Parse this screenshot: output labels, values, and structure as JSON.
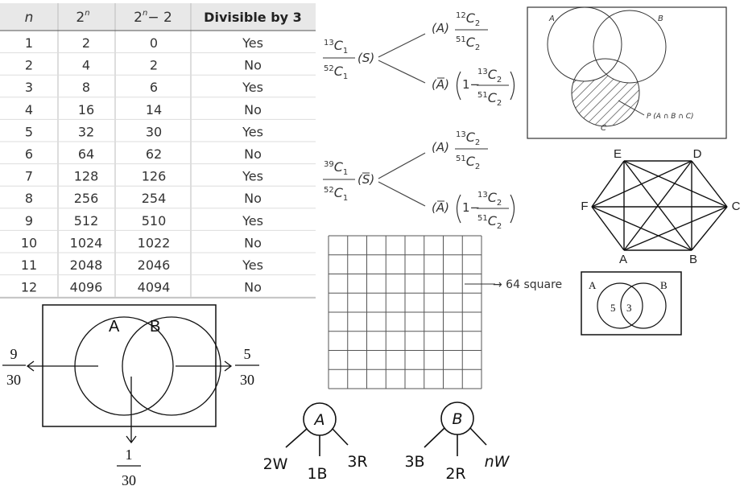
{
  "table": {
    "headers": [
      "n",
      "2",
      "2",
      "Divisible by 3"
    ],
    "header_pow": "n",
    "header_minus": "− 2",
    "rows": [
      [
        "1",
        "2",
        "0",
        "Yes"
      ],
      [
        "2",
        "4",
        "2",
        "No"
      ],
      [
        "3",
        "8",
        "6",
        "Yes"
      ],
      [
        "4",
        "16",
        "14",
        "No"
      ],
      [
        "5",
        "32",
        "30",
        "Yes"
      ],
      [
        "6",
        "64",
        "62",
        "No"
      ],
      [
        "7",
        "128",
        "126",
        "Yes"
      ],
      [
        "8",
        "256",
        "254",
        "No"
      ],
      [
        "9",
        "512",
        "510",
        "Yes"
      ],
      [
        "10",
        "1024",
        "1022",
        "No"
      ],
      [
        "11",
        "2048",
        "2046",
        "Yes"
      ],
      [
        "12",
        "4096",
        "4094",
        "No"
      ]
    ]
  },
  "tree1": {
    "root_num_pre": "13",
    "root_num": "C",
    "root_num_sub": "1",
    "root_den_pre": "52",
    "root_den": "C",
    "root_den_sub": "1",
    "root_label": "(S)",
    "branch_a": "(A)",
    "branch_a_num_pre": "12",
    "branch_a_den_pre": "51",
    "branch_a_c": "C",
    "branch_a_sub": "2",
    "branch_abar": "(A)",
    "one_minus": "1−",
    "abar_num_pre": "13",
    "abar_den_pre": "51"
  },
  "tree2": {
    "root_num_pre": "39",
    "root_den_pre": "52",
    "root_label": "(S)",
    "branch_a_num_pre": "13",
    "branch_a_den_pre": "51",
    "abar_num_pre": "13",
    "abar_den_pre": "51"
  },
  "grid_label": "→ 64 square",
  "venn3": {
    "a": "A",
    "b": "B",
    "c": "C",
    "p": "P (A ∩ B ∩ C)"
  },
  "hexagon": {
    "labels": [
      "E",
      "D",
      "C",
      "B",
      "A",
      "F"
    ]
  },
  "venn_small": {
    "a": "A",
    "b": "B",
    "v1": "5",
    "v2": "3"
  },
  "venn_main": {
    "a": "A",
    "b": "B",
    "left_num": "9",
    "left_den": "30",
    "right_num": "5",
    "right_den": "30",
    "bottom_num": "1",
    "bottom_den": "30"
  },
  "urn_a": {
    "label": "A",
    "items": [
      "2W",
      "1B",
      "3R"
    ]
  },
  "urn_b": {
    "label": "B",
    "items": [
      "3B",
      "2R",
      "nW"
    ]
  }
}
